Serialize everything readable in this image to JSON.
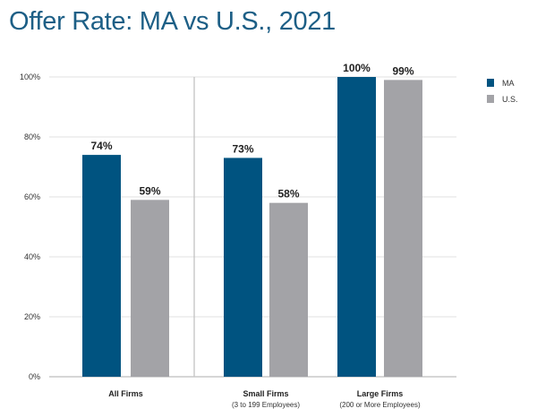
{
  "title": "Offer Rate: MA vs U.S., 2021",
  "chart_data": {
    "type": "bar",
    "title": "Offer Rate: MA vs U.S., 2021",
    "categories": [
      "All Firms",
      "Small Firms",
      "Large Firms"
    ],
    "category_subtitles": [
      "",
      "(3 to 199 Employees)",
      "(200 or More Employees)"
    ],
    "series": [
      {
        "name": "MA",
        "color": "#005380",
        "values": [
          74,
          73,
          100
        ]
      },
      {
        "name": "U.S.",
        "color": "#a3a3a7",
        "values": [
          59,
          58,
          99
        ]
      }
    ],
    "data_labels": [
      [
        "74%",
        "73%",
        "100%"
      ],
      [
        "59%",
        "58%",
        "99%"
      ]
    ],
    "yticks": [
      "0%",
      "20%",
      "40%",
      "60%",
      "80%",
      "100%"
    ],
    "ylim": [
      0,
      100
    ],
    "xlabel": "",
    "ylabel": "",
    "grid": true,
    "legend": "top-right"
  }
}
